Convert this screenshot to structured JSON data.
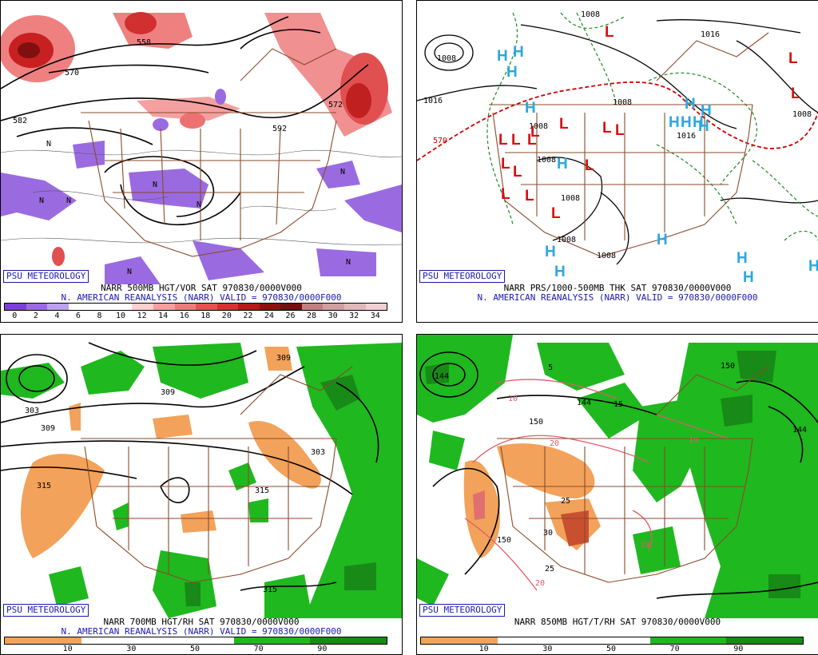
{
  "branding": "PSU METEOROLOGY",
  "panels": [
    {
      "id": "tl",
      "title_line1": "NARR 500MB HGT/VOR SAT 970830/0000V000",
      "title_line2": "N. AMERICAN REANALYSIS (NARR) VALID = 970830/0000F000",
      "colorbar": {
        "ticks": [
          "0",
          "2",
          "4",
          "6",
          "8",
          "10",
          "12",
          "14",
          "16",
          "18",
          "20",
          "22",
          "24",
          "26",
          "28",
          "30",
          "32",
          "34"
        ],
        "colors": [
          "#7a3fd6",
          "#9a6be0",
          "#bba0ea",
          "#ffffff",
          "#ffffff",
          "#ffffff",
          "#ffd0d0",
          "#f5a0a0",
          "#ef7a7a",
          "#e85050",
          "#d83030",
          "#b81818",
          "#901010",
          "#701010",
          "#c08080",
          "#d0a0a0",
          "#e0b8b8",
          "#f0d0d0"
        ]
      },
      "contour_labels": [
        "558",
        "570",
        "582",
        "592",
        "572",
        "N",
        "N",
        "N",
        "N",
        "N",
        "N",
        "N",
        "N"
      ]
    },
    {
      "id": "tr",
      "title_line1": "NARR PRS/1000-500MB THK SAT 970830/0000V000",
      "title_line2": "N. AMERICAN REANALYSIS (NARR) VALID = 970830/0000F000",
      "contour_labels": [
        "1008",
        "1016",
        "1008",
        "1016",
        "1008",
        "1008",
        "1016",
        "1008",
        "1008",
        "1008",
        "570",
        "1008",
        "1008"
      ],
      "high_low_marks": {
        "H_count": 17,
        "L_count": 16
      }
    },
    {
      "id": "bl",
      "title_line1": "NARR 700MB HGT/RH SAT 970830/0000V000",
      "title_line2": "N. AMERICAN REANALYSIS (NARR) VALID = 970830/0000F000",
      "colorbar": {
        "ticks": [
          "10",
          "30",
          "50",
          "70",
          "90"
        ],
        "colors": [
          "#f2a25a",
          "#ffffff",
          "#ffffff",
          "#1fb81f",
          "#188a18"
        ]
      },
      "contour_labels": [
        "303",
        "309",
        "309",
        "315",
        "309",
        "303",
        "315",
        "315"
      ]
    },
    {
      "id": "br",
      "title_line1": "NARR 850MB HGT/T/RH SAT 970830/0000V000",
      "colorbar": {
        "ticks": [
          "10",
          "30",
          "50",
          "70",
          "90"
        ],
        "colors": [
          "#f2a25a",
          "#ffffff",
          "#ffffff",
          "#1fb81f",
          "#188a18"
        ]
      },
      "contour_labels": [
        "144",
        "150",
        "144",
        "150",
        "144",
        "5",
        "15",
        "10",
        "20",
        "10",
        "25",
        "30",
        "20",
        "25",
        "20",
        "150"
      ]
    }
  ]
}
